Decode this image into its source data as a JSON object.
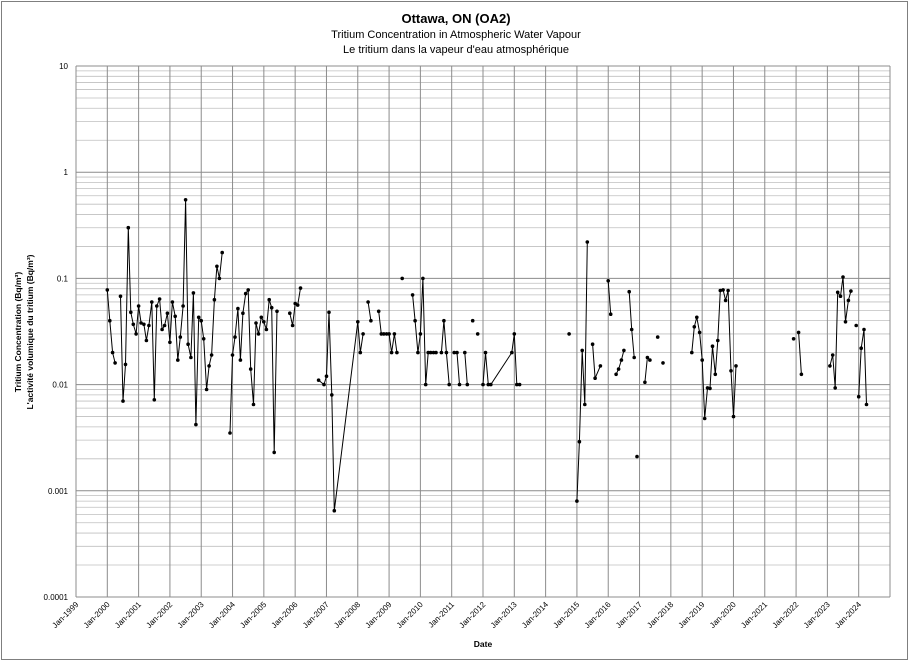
{
  "chart_data": {
    "type": "line",
    "title": "Ottawa, ON (OA2)",
    "subtitle1": "Tritium Concentration in Atmospheric Water Vapour",
    "subtitle2": "Le tritium dans la vapeur d'eau atmosphérique",
    "xlabel": "Date",
    "ylabel1": "Tritium Concentration (Bq/m³)",
    "ylabel2": "L'activité volumique du tritium (Bq/m³)",
    "yscale": "log",
    "ylim": [
      0.0001,
      10
    ],
    "ytick_labels": [
      "10",
      "1",
      "0.1",
      "0.01",
      "0.001",
      "0.0001"
    ],
    "xlim": [
      1999.0,
      2025.0
    ],
    "xtick_labels": [
      "Jan-1999",
      "Jan-2000",
      "Jan-2001",
      "Jan-2002",
      "Jan-2003",
      "Jan-2004",
      "Jan-2005",
      "Jan-2006",
      "Jan-2007",
      "Jan-2008",
      "Jan-2009",
      "Jan-2010",
      "Jan-2011",
      "Jan-2012",
      "Jan-2013",
      "Jan-2014",
      "Jan-2015",
      "Jan-2016",
      "Jan-2017",
      "Jan-2018",
      "Jan-2019",
      "Jan-2020",
      "Jan-2021",
      "Jan-2022",
      "Jan-2023",
      "Jan-2024"
    ],
    "grid": true,
    "segments": [
      [
        [
          2000.0,
          0.078
        ],
        [
          2000.08,
          0.04
        ],
        [
          2000.17,
          0.02
        ],
        [
          2000.25,
          0.016
        ]
      ],
      [
        [
          2000.42,
          0.068
        ],
        [
          2000.5,
          0.007
        ],
        [
          2000.58,
          0.0155
        ],
        [
          2000.67,
          0.3
        ],
        [
          2000.75,
          0.048
        ],
        [
          2000.83,
          0.037
        ],
        [
          2000.92,
          0.03
        ],
        [
          2001.0,
          0.055
        ],
        [
          2001.08,
          0.038
        ],
        [
          2001.17,
          0.037
        ],
        [
          2001.25,
          0.026
        ],
        [
          2001.33,
          0.036
        ],
        [
          2001.42,
          0.06
        ],
        [
          2001.5,
          0.0072
        ],
        [
          2001.58,
          0.055
        ],
        [
          2001.67,
          0.064
        ],
        [
          2001.75,
          0.033
        ],
        [
          2001.83,
          0.036
        ],
        [
          2001.92,
          0.047
        ],
        [
          2002.0,
          0.025
        ],
        [
          2002.08,
          0.06
        ],
        [
          2002.17,
          0.044
        ],
        [
          2002.25,
          0.017
        ],
        [
          2002.33,
          0.028
        ],
        [
          2002.42,
          0.055
        ],
        [
          2002.5,
          0.55
        ],
        [
          2002.58,
          0.024
        ],
        [
          2002.67,
          0.018
        ],
        [
          2002.75,
          0.073
        ],
        [
          2002.83,
          0.0042
        ],
        [
          2002.92,
          0.043
        ],
        [
          2003.0,
          0.04
        ],
        [
          2003.08,
          0.027
        ],
        [
          2003.17,
          0.009
        ],
        [
          2003.25,
          0.015
        ],
        [
          2003.33,
          0.019
        ],
        [
          2003.42,
          0.063
        ],
        [
          2003.5,
          0.13
        ],
        [
          2003.58,
          0.1
        ],
        [
          2003.67,
          0.175
        ]
      ],
      [
        [
          2003.92,
          0.0035
        ],
        [
          2004.0,
          0.019
        ],
        [
          2004.08,
          0.028
        ],
        [
          2004.17,
          0.052
        ],
        [
          2004.25,
          0.017
        ],
        [
          2004.33,
          0.047
        ],
        [
          2004.42,
          0.072
        ],
        [
          2004.5,
          0.078
        ],
        [
          2004.58,
          0.014
        ],
        [
          2004.67,
          0.0065
        ],
        [
          2004.75,
          0.038
        ],
        [
          2004.83,
          0.03
        ],
        [
          2004.92,
          0.043
        ],
        [
          2005.0,
          0.039
        ],
        [
          2005.08,
          0.033
        ],
        [
          2005.17,
          0.063
        ],
        [
          2005.25,
          0.053
        ],
        [
          2005.33,
          0.0023
        ],
        [
          2005.42,
          0.049
        ]
      ],
      [
        [
          2005.83,
          0.047
        ],
        [
          2005.92,
          0.036
        ],
        [
          2006.0,
          0.058
        ],
        [
          2006.08,
          0.056
        ],
        [
          2006.17,
          0.081
        ]
      ],
      [
        [
          2006.75,
          0.011
        ],
        [
          2006.92,
          0.01
        ],
        [
          2007.0,
          0.012
        ],
        [
          2007.08,
          0.048
        ],
        [
          2007.17,
          0.008
        ],
        [
          2007.25,
          0.00065
        ],
        [
          2008.0,
          0.039
        ],
        [
          2008.08,
          0.02
        ],
        [
          2008.17,
          0.03
        ]
      ],
      [
        [
          2008.33,
          0.06
        ],
        [
          2008.42,
          0.04
        ]
      ],
      [
        [
          2008.67,
          0.049
        ],
        [
          2008.75,
          0.03
        ],
        [
          2008.83,
          0.03
        ],
        [
          2008.92,
          0.03
        ],
        [
          2009.0,
          0.03
        ],
        [
          2009.08,
          0.02
        ],
        [
          2009.17,
          0.03
        ],
        [
          2009.25,
          0.02
        ]
      ],
      [
        [
          2009.42,
          0.1
        ]
      ],
      [
        [
          2009.75,
          0.07
        ],
        [
          2009.83,
          0.04
        ],
        [
          2009.92,
          0.02
        ],
        [
          2010.0,
          0.03
        ],
        [
          2010.08,
          0.1
        ],
        [
          2010.17,
          0.01
        ],
        [
          2010.25,
          0.02
        ],
        [
          2010.33,
          0.02
        ],
        [
          2010.42,
          0.02
        ],
        [
          2010.5,
          0.02
        ]
      ],
      [
        [
          2010.67,
          0.02
        ],
        [
          2010.75,
          0.04
        ],
        [
          2010.83,
          0.02
        ],
        [
          2010.92,
          0.01
        ]
      ],
      [
        [
          2011.08,
          0.02
        ],
        [
          2011.17,
          0.02
        ],
        [
          2011.25,
          0.01
        ]
      ],
      [
        [
          2011.42,
          0.02
        ],
        [
          2011.5,
          0.01
        ]
      ],
      [
        [
          2011.67,
          0.04
        ]
      ],
      [
        [
          2011.83,
          0.03
        ]
      ],
      [
        [
          2012.0,
          0.01
        ],
        [
          2012.08,
          0.02
        ],
        [
          2012.17,
          0.01
        ],
        [
          2012.25,
          0.01
        ],
        [
          2012.92,
          0.02
        ],
        [
          2013.0,
          0.03
        ],
        [
          2013.08,
          0.01
        ],
        [
          2013.17,
          0.01
        ]
      ],
      [
        [
          2014.75,
          0.03
        ]
      ],
      [
        [
          2015.0,
          0.0008
        ],
        [
          2015.08,
          0.0029
        ],
        [
          2015.17,
          0.021
        ],
        [
          2015.25,
          0.0065
        ],
        [
          2015.33,
          0.22
        ]
      ],
      [
        [
          2015.5,
          0.024
        ],
        [
          2015.58,
          0.0115
        ],
        [
          2015.75,
          0.015
        ]
      ],
      [
        [
          2016.0,
          0.095
        ],
        [
          2016.08,
          0.046
        ]
      ],
      [
        [
          2016.25,
          0.0125
        ],
        [
          2016.33,
          0.014
        ],
        [
          2016.42,
          0.017
        ],
        [
          2016.5,
          0.021
        ]
      ],
      [
        [
          2016.67,
          0.075
        ],
        [
          2016.75,
          0.033
        ],
        [
          2016.83,
          0.018
        ]
      ],
      [
        [
          2016.92,
          0.0021
        ]
      ],
      [
        [
          2017.17,
          0.0105
        ],
        [
          2017.25,
          0.018
        ],
        [
          2017.33,
          0.017
        ]
      ],
      [
        [
          2017.58,
          0.028
        ]
      ],
      [
        [
          2017.75,
          0.016
        ]
      ],
      [
        [
          2018.67,
          0.02
        ],
        [
          2018.75,
          0.035
        ],
        [
          2018.83,
          0.043
        ],
        [
          2018.92,
          0.031
        ],
        [
          2019.0,
          0.017
        ],
        [
          2019.08,
          0.0048
        ],
        [
          2019.17,
          0.0093
        ],
        [
          2019.25,
          0.0092
        ],
        [
          2019.33,
          0.023
        ],
        [
          2019.42,
          0.0125
        ],
        [
          2019.5,
          0.026
        ],
        [
          2019.58,
          0.077
        ],
        [
          2019.67,
          0.078
        ],
        [
          2019.75,
          0.062
        ],
        [
          2019.83,
          0.077
        ],
        [
          2019.92,
          0.0135
        ],
        [
          2020.0,
          0.005
        ],
        [
          2020.08,
          0.015
        ]
      ],
      [
        [
          2021.92,
          0.027
        ]
      ],
      [
        [
          2022.08,
          0.031
        ],
        [
          2022.17,
          0.0125
        ]
      ],
      [
        [
          2023.08,
          0.015
        ],
        [
          2023.17,
          0.019
        ],
        [
          2023.25,
          0.0093
        ],
        [
          2023.33,
          0.074
        ],
        [
          2023.42,
          0.068
        ],
        [
          2023.5,
          0.103
        ],
        [
          2023.58,
          0.039
        ],
        [
          2023.67,
          0.062
        ],
        [
          2023.75,
          0.076
        ]
      ],
      [
        [
          2023.92,
          0.036
        ]
      ],
      [
        [
          2024.0,
          0.0077
        ],
        [
          2024.08,
          0.022
        ],
        [
          2024.17,
          0.033
        ],
        [
          2024.25,
          0.0065
        ]
      ]
    ]
  }
}
